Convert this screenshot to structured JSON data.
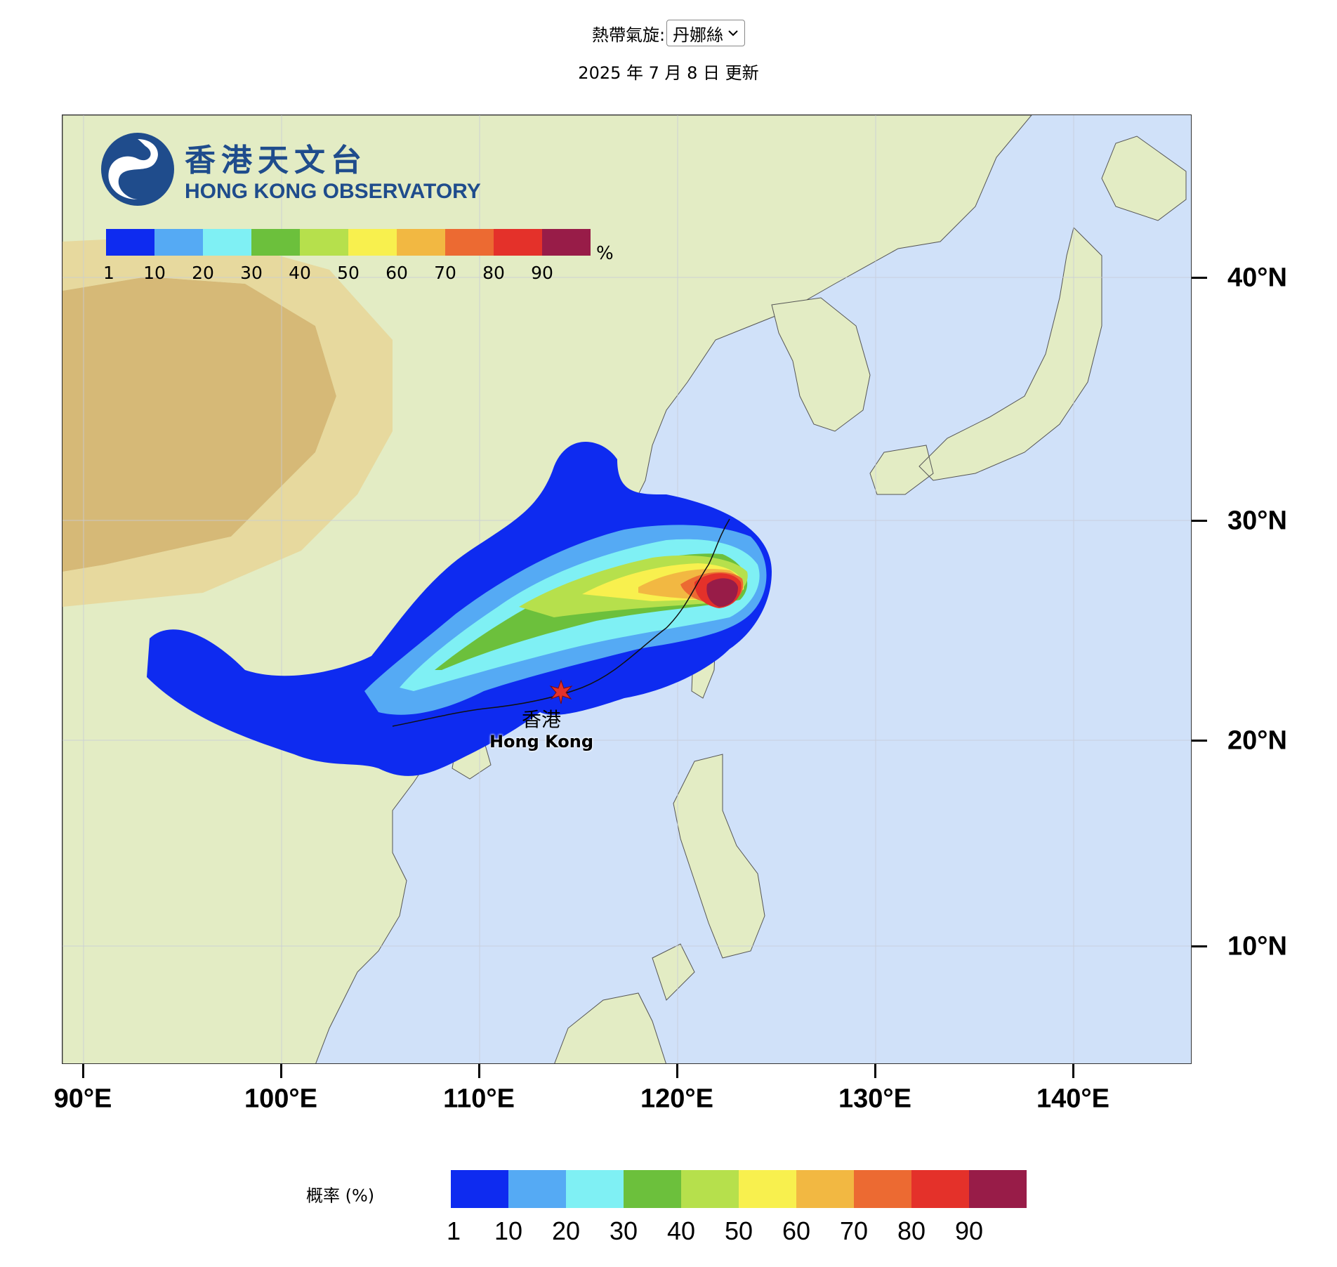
{
  "header": {
    "selector_label": "熱帶氣旋:",
    "selector_value": "丹娜絲",
    "update_text": "2025 年 7 月 8 日 更新"
  },
  "logo": {
    "name_zh": "香港天文台",
    "name_en": "HONG KONG OBSERVATORY"
  },
  "map": {
    "lat_labels": [
      "40°N",
      "30°N",
      "20°N",
      "10°N"
    ],
    "lon_labels": [
      "90°E",
      "100°E",
      "110°E",
      "120°E",
      "130°E",
      "140°E"
    ],
    "location_marker": {
      "name_zh": "香港",
      "name_en": "Hong Kong"
    },
    "colors": {
      "ocean": "#d0e1f9",
      "land": "#e3ecc4",
      "highland": "#d4b06a"
    }
  },
  "legend": {
    "title": "概率 (%)",
    "unit": "%",
    "ticks": [
      "1",
      "10",
      "20",
      "30",
      "40",
      "50",
      "60",
      "70",
      "80",
      "90"
    ],
    "colors": [
      "#0e2bf0",
      "#55aaf4",
      "#7ff0f4",
      "#6cc03c",
      "#b6e04c",
      "#f8f04e",
      "#f2b842",
      "#ec6a32",
      "#e4312a",
      "#981c48"
    ]
  }
}
